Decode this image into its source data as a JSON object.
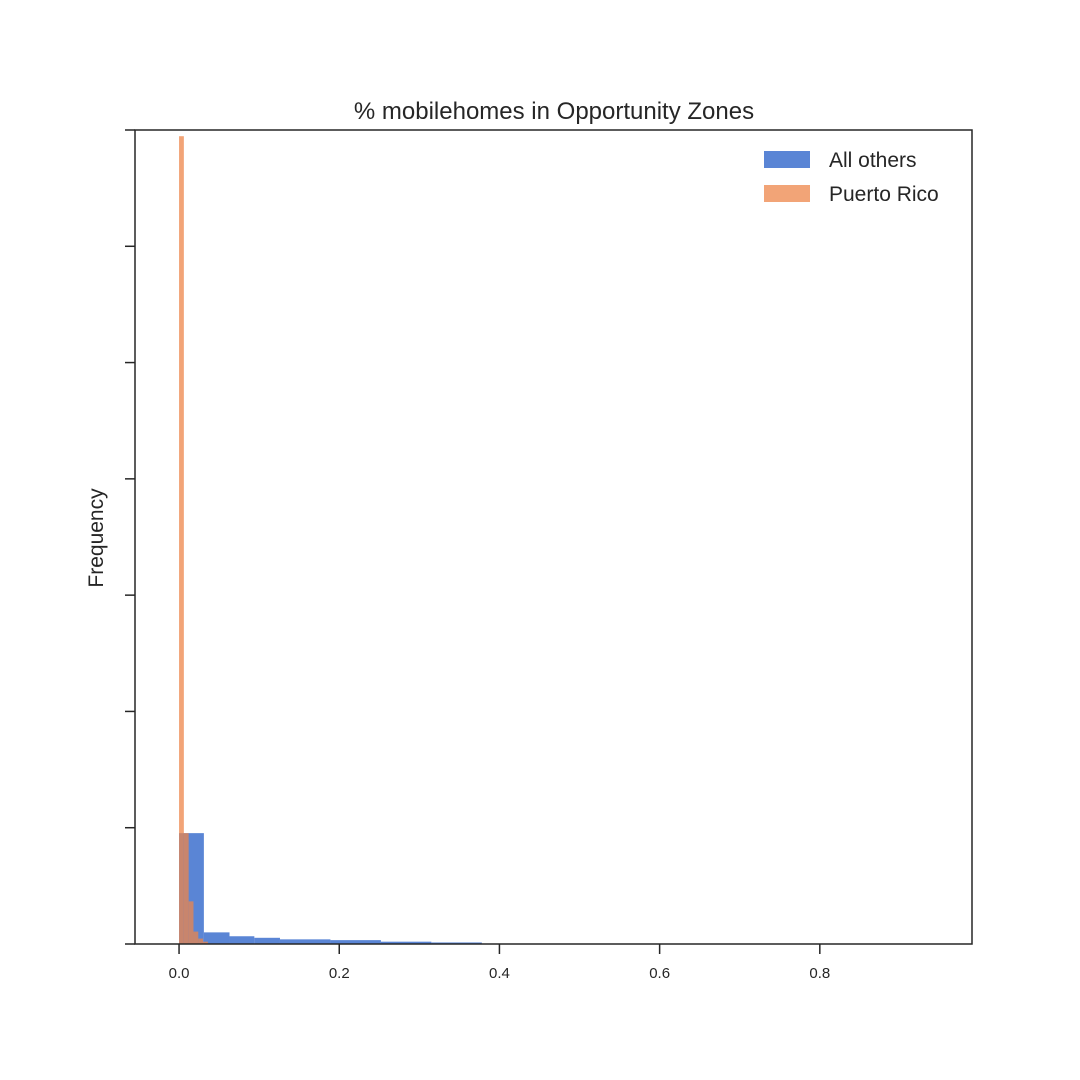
{
  "chart_data": {
    "type": "bar",
    "subtype": "histogram-overlay",
    "title": "% mobilehomes in Opportunity Zones",
    "xlabel": "",
    "ylabel": "Frequency",
    "xlim": [
      -0.055,
      0.99
    ],
    "ylim": [
      0,
      1.05
    ],
    "x_ticks": [
      0.0,
      0.2,
      0.4,
      0.6,
      0.8
    ],
    "x_tick_labels": [
      "0.0",
      "0.2",
      "0.4",
      "0.6",
      "0.8"
    ],
    "y_ticks": [
      0,
      0.15,
      0.3,
      0.45,
      0.6,
      0.75,
      0.9,
      1.05
    ],
    "y_tick_labels_shown": false,
    "grid": false,
    "legend_position": "top-right",
    "series": [
      {
        "name": "All others",
        "color": "#4878d0",
        "opacity": 0.9,
        "bins": [
          {
            "x0": 0.0,
            "x1": 0.031,
            "y": 0.143
          },
          {
            "x0": 0.031,
            "x1": 0.063,
            "y": 0.015
          },
          {
            "x0": 0.063,
            "x1": 0.094,
            "y": 0.01
          },
          {
            "x0": 0.094,
            "x1": 0.126,
            "y": 0.008
          },
          {
            "x0": 0.126,
            "x1": 0.189,
            "y": 0.006
          },
          {
            "x0": 0.189,
            "x1": 0.252,
            "y": 0.005
          },
          {
            "x0": 0.252,
            "x1": 0.315,
            "y": 0.003
          },
          {
            "x0": 0.315,
            "x1": 0.378,
            "y": 0.002
          }
        ]
      },
      {
        "name": "Puerto Rico",
        "color": "#ee854a",
        "opacity": 0.75,
        "bins": [
          {
            "x0": 0.0,
            "x1": 0.006,
            "y": 1.042
          },
          {
            "x0": 0.006,
            "x1": 0.012,
            "y": 0.143
          },
          {
            "x0": 0.012,
            "x1": 0.018,
            "y": 0.055
          },
          {
            "x0": 0.018,
            "x1": 0.024,
            "y": 0.016
          },
          {
            "x0": 0.024,
            "x1": 0.03,
            "y": 0.007
          },
          {
            "x0": 0.03,
            "x1": 0.036,
            "y": 0.003
          }
        ]
      }
    ]
  }
}
